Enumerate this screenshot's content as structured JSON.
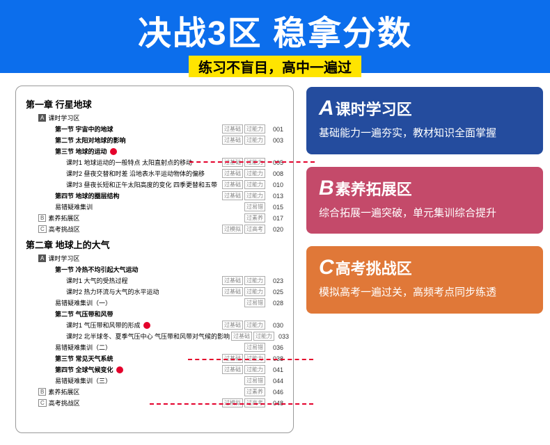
{
  "header": {
    "title": "决战3区 稳拿分数",
    "subtitle": "练习不盲目，高中一遍过"
  },
  "toc": {
    "ch1": "第一章  行星地球",
    "zoneA": "课时学习区",
    "zoneB": "素养拓展区",
    "zoneC": "高考挑战区",
    "zA": "A",
    "zB": "B",
    "zC": "C",
    "t1": "过基础",
    "t2": "过能力",
    "t3": "过易错",
    "t4": "过素养",
    "t5": "过模拟",
    "t6": "过高考",
    "s1_1": "第一节  宇宙中的地球",
    "s1_2": "第二节  太阳对地球的影响",
    "s1_3": "第三节  地球的运动",
    "s1_3_1": "课时1  地球运动的一般特点  太阳直射点的移动",
    "s1_3_2": "课时2  昼夜交替和时差  沿地表水平运动物体的偏移",
    "s1_3_3": "课时3  昼夜长短和正午太阳高度的变化  四季更替和五带",
    "s1_4": "第四节  地球的圈层结构",
    "s1_e": "易错疑难集训",
    "ch2": "第二章  地球上的大气",
    "s2_1": "第一节  冷热不均引起大气运动",
    "s2_1_1": "课时1  大气的受热过程",
    "s2_1_2": "课时2  热力环流与大气的水平运动",
    "s2_e1": "易错疑难集训（一）",
    "s2_2": "第二节  气压带和风带",
    "s2_2_1": "课时1  气压带和风带的形成",
    "s2_2_2": "课时2  北半球冬、夏季气压中心  气压带和风带对气候的影响",
    "s2_e2": "易错疑难集训（二）",
    "s2_3": "第三节  常见天气系统",
    "s2_4": "第四节  全球气候变化",
    "s2_e3": "易错疑难集训（三）",
    "p": {
      "p001": "001",
      "p003": "003",
      "p005": "005",
      "p008": "008",
      "p010": "010",
      "p013": "013",
      "p015": "015",
      "p017": "017",
      "p020": "020",
      "p023": "023",
      "p025": "025",
      "p028": "028",
      "p030": "030",
      "p033": "033",
      "p036": "036",
      "p038": "038",
      "p041": "041",
      "p044": "044",
      "p046": "046",
      "p048": "048"
    }
  },
  "cards": {
    "a": {
      "letter": "A",
      "title": "课时学习区",
      "desc": "基础能力一遍夯实，教材知识全面掌握"
    },
    "b": {
      "letter": "B",
      "title": "素养拓展区",
      "desc": "综合拓展一遍突破，单元集训综合提升"
    },
    "c": {
      "letter": "C",
      "title": "高考挑战区",
      "desc": "模拟高考一遍过关，高频考点同步练透"
    }
  }
}
